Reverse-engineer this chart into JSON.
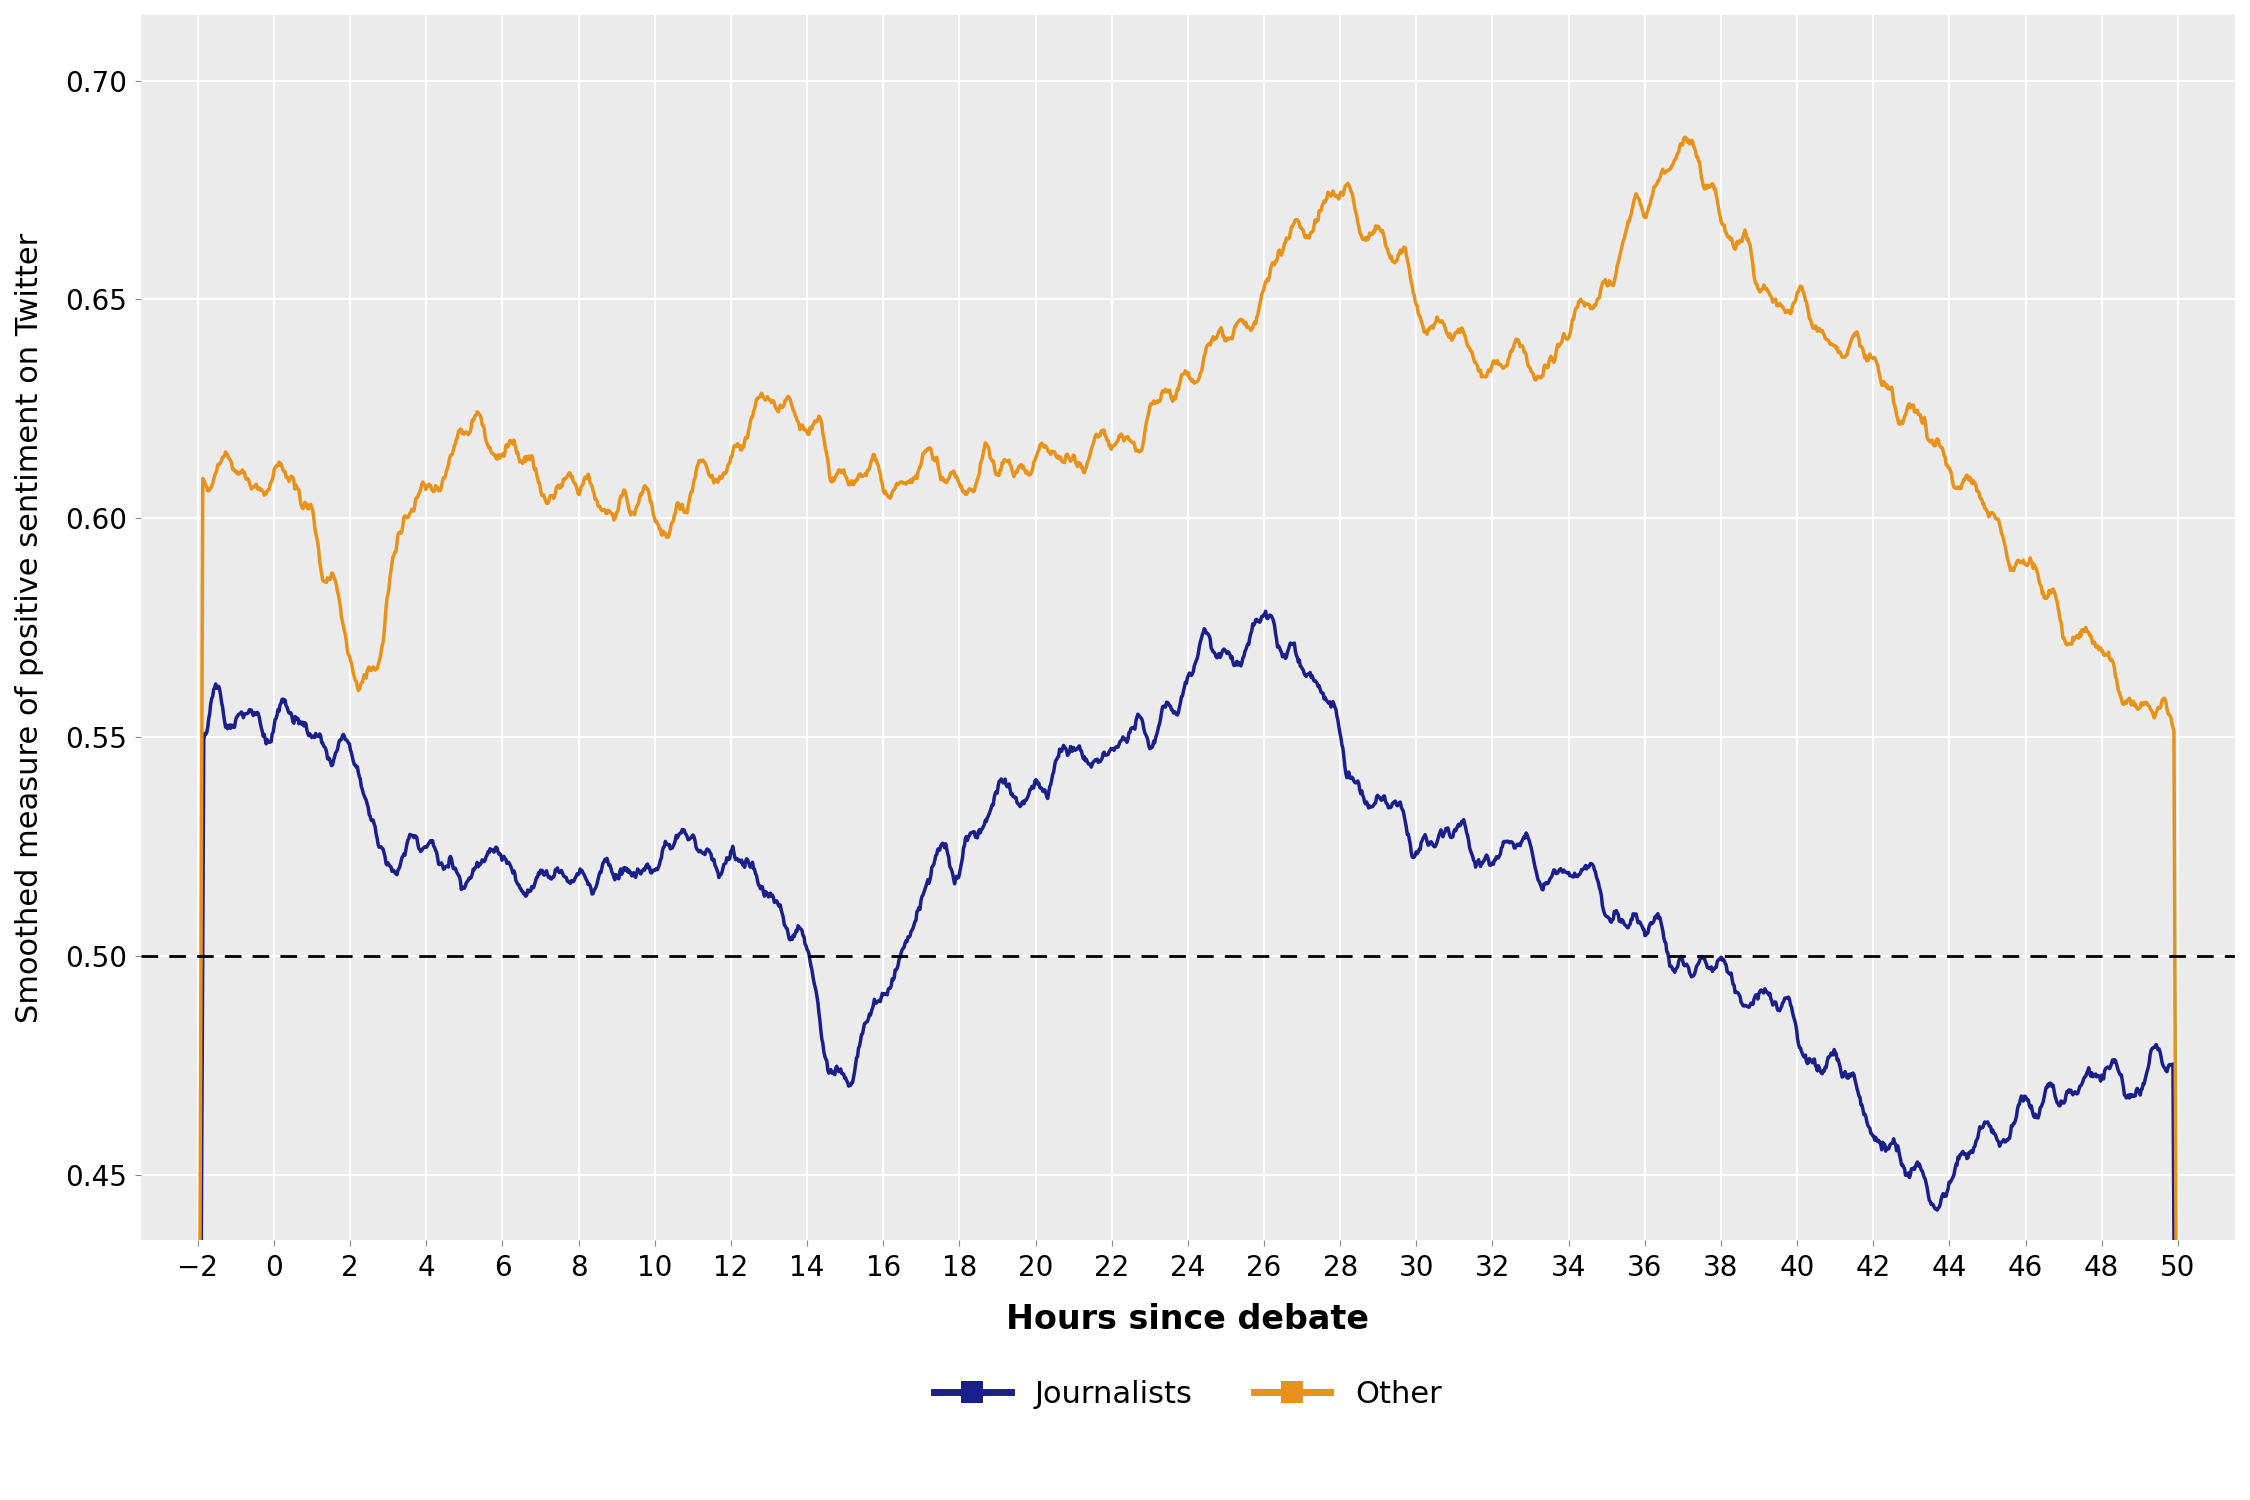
{
  "title": "",
  "xlabel": "Hours since debate",
  "ylabel": "Smoothed measure of positive sentiment on Twitter",
  "journalist_color": "#1b1f8a",
  "other_color": "#E8921A",
  "dashed_line_y": 0.5,
  "ylim": [
    0.435,
    0.715
  ],
  "xlim": [
    -3.5,
    51.5
  ],
  "yticks": [
    0.45,
    0.5,
    0.55,
    0.6,
    0.65,
    0.7
  ],
  "xticks": [
    -2,
    0,
    2,
    4,
    6,
    8,
    10,
    12,
    14,
    16,
    18,
    20,
    22,
    24,
    26,
    28,
    30,
    32,
    34,
    36,
    38,
    40,
    42,
    44,
    46,
    48,
    50
  ],
  "panel_background": "#ebebeb",
  "fig_background": "#ffffff",
  "grid_color": "#ffffff",
  "legend_labels": [
    "Journalists",
    "Other"
  ],
  "line_width": 2.5,
  "legend_fontsize": 22,
  "axis_label_fontsize": 24,
  "tick_fontsize": 20,
  "ylabel_fontsize": 22
}
